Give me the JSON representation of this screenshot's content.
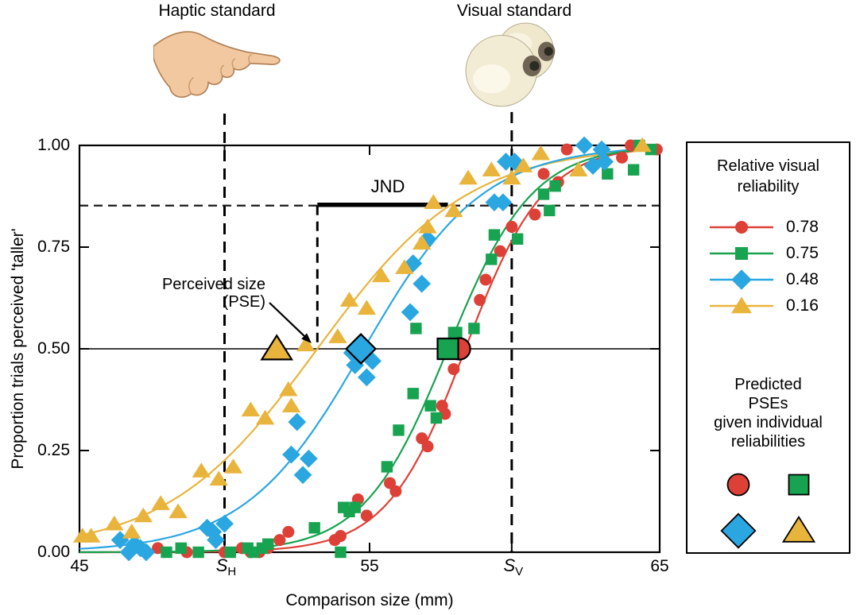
{
  "figure": {
    "haptic_label": "Haptic standard",
    "visual_label": "Visual standard",
    "annotations": {
      "jnd_label": "JND",
      "pse_label_line1": "Perceived size",
      "pse_label_line2": "(PSE)"
    },
    "x_axis": {
      "title": "Comparison size (mm)",
      "ticks": [
        "45",
        "55",
        "65"
      ],
      "tick_values": [
        45,
        55,
        65
      ],
      "standard_ticks": [
        {
          "main": "S",
          "sub": "H",
          "mm": 50.0
        },
        {
          "main": "S",
          "sub": "V",
          "mm": 59.9
        }
      ]
    },
    "y_axis": {
      "title": "Proportion trials perceived 'taller'",
      "ticks": [
        "1.00",
        "0.75",
        "0.50",
        "0.25",
        "0.00"
      ],
      "tick_values": [
        1,
        0.75,
        0.5,
        0.25,
        0
      ]
    }
  },
  "legend": {
    "title_line1": "Relative visual",
    "title_line2": "reliability",
    "predicted_title_lines": [
      "Predicted",
      "PSEs",
      "given individual",
      "reliabilities"
    ]
  },
  "chart_data": {
    "type": "scatter",
    "title": "",
    "xlabel": "Comparison size (mm)",
    "ylabel": "Proportion trials perceived 'taller'",
    "xlim": [
      45,
      65
    ],
    "ylim": [
      0,
      1
    ],
    "grid": false,
    "legend_position": "right",
    "haptic_standard_mm": 50.0,
    "visual_standard_mm": 59.9,
    "pse_line_y": 0.5,
    "jnd_criterion_y": 0.852,
    "jnd_interval_mm": [
      53.2,
      57.7
    ],
    "series": [
      {
        "name": "0.78",
        "marker": "circle",
        "color": "#dd4036",
        "curve": {
          "type": "logistic",
          "pse": 58.3,
          "slope": 1.35
        },
        "predicted_pse_mm": 58.1,
        "points": [
          [
            47.7,
            0.01
          ],
          [
            48.7,
            0.0
          ],
          [
            50.0,
            0.0
          ],
          [
            50.6,
            0.01
          ],
          [
            50.9,
            0.0
          ],
          [
            51.2,
            0.0
          ],
          [
            51.5,
            0.01
          ],
          [
            51.9,
            0.03
          ],
          [
            52.2,
            0.05
          ],
          [
            53.8,
            0.03
          ],
          [
            54.0,
            0.04
          ],
          [
            54.6,
            0.13
          ],
          [
            54.9,
            0.09
          ],
          [
            55.7,
            0.17
          ],
          [
            55.9,
            0.15
          ],
          [
            56.8,
            0.28
          ],
          [
            57.0,
            0.26
          ],
          [
            57.5,
            0.36
          ],
          [
            57.6,
            0.34
          ],
          [
            57.9,
            0.45
          ],
          [
            58.8,
            0.62
          ],
          [
            59.0,
            0.67
          ],
          [
            59.5,
            0.74
          ],
          [
            59.9,
            0.8
          ],
          [
            60.7,
            0.83
          ],
          [
            61.0,
            0.93
          ],
          [
            61.5,
            0.91
          ],
          [
            61.8,
            0.99
          ],
          [
            63.7,
            0.97
          ],
          [
            64.0,
            1.0
          ],
          [
            64.9,
            0.99
          ]
        ]
      },
      {
        "name": "0.75",
        "marker": "square",
        "color": "#17a34f",
        "curve": {
          "type": "logistic",
          "pse": 57.7,
          "slope": 1.45
        },
        "predicted_pse_mm": 57.7,
        "points": [
          [
            48.0,
            0.0
          ],
          [
            48.5,
            0.01
          ],
          [
            49.1,
            0.0
          ],
          [
            50.2,
            0.0
          ],
          [
            50.8,
            0.01
          ],
          [
            51.0,
            0.0
          ],
          [
            51.3,
            0.01
          ],
          [
            51.5,
            0.02
          ],
          [
            53.1,
            0.06
          ],
          [
            54.0,
            0.0
          ],
          [
            54.1,
            0.11
          ],
          [
            54.3,
            0.1
          ],
          [
            54.5,
            0.11
          ],
          [
            55.6,
            0.21
          ],
          [
            56.0,
            0.3
          ],
          [
            56.5,
            0.39
          ],
          [
            56.6,
            0.55
          ],
          [
            57.1,
            0.36
          ],
          [
            57.3,
            0.33
          ],
          [
            57.9,
            0.54
          ],
          [
            58.0,
            0.54
          ],
          [
            58.6,
            0.55
          ],
          [
            59.2,
            0.72
          ],
          [
            59.3,
            0.78
          ],
          [
            60.1,
            0.77
          ],
          [
            61.0,
            0.88
          ],
          [
            61.2,
            0.84
          ],
          [
            61.4,
            0.9
          ],
          [
            63.2,
            0.93
          ],
          [
            64.1,
            0.94
          ],
          [
            64.3,
            1.0
          ],
          [
            64.7,
            0.99
          ]
        ]
      },
      {
        "name": "0.48",
        "marker": "diamond",
        "color": "#2aa7e0",
        "curve": {
          "type": "logistic",
          "pse": 54.8,
          "slope": 2.05
        },
        "predicted_pse_mm": 54.7,
        "points": [
          [
            46.4,
            0.03
          ],
          [
            46.7,
            0.0
          ],
          [
            46.9,
            0.02
          ],
          [
            47.1,
            0.01
          ],
          [
            47.3,
            0.0
          ],
          [
            49.4,
            0.06
          ],
          [
            49.6,
            0.05
          ],
          [
            49.7,
            0.03
          ],
          [
            50.0,
            0.07
          ],
          [
            52.3,
            0.24
          ],
          [
            52.5,
            0.32
          ],
          [
            52.7,
            0.19
          ],
          [
            52.9,
            0.23
          ],
          [
            54.4,
            0.49
          ],
          [
            54.5,
            0.46
          ],
          [
            54.9,
            0.43
          ],
          [
            55.1,
            0.47
          ],
          [
            56.4,
            0.59
          ],
          [
            56.5,
            0.71
          ],
          [
            56.8,
            0.66
          ],
          [
            57.0,
            0.77
          ],
          [
            59.3,
            0.86
          ],
          [
            59.6,
            0.86
          ],
          [
            59.7,
            0.96
          ],
          [
            60.0,
            0.96
          ],
          [
            62.4,
            1.0
          ],
          [
            62.7,
            0.95
          ],
          [
            63.0,
            0.99
          ],
          [
            63.1,
            0.96
          ]
        ]
      },
      {
        "name": "0.16",
        "marker": "triangle",
        "color": "#e9b43c",
        "curve": {
          "type": "logistic",
          "pse": 53.2,
          "slope": 2.6
        },
        "predicted_pse_mm": 51.8,
        "points": [
          [
            45.1,
            0.04
          ],
          [
            45.4,
            0.04
          ],
          [
            46.2,
            0.07
          ],
          [
            46.8,
            0.05
          ],
          [
            47.2,
            0.09
          ],
          [
            47.8,
            0.12
          ],
          [
            48.4,
            0.1
          ],
          [
            49.2,
            0.2
          ],
          [
            49.8,
            0.18
          ],
          [
            50.3,
            0.21
          ],
          [
            50.9,
            0.35
          ],
          [
            51.4,
            0.33
          ],
          [
            52.2,
            0.4
          ],
          [
            52.3,
            0.36
          ],
          [
            52.8,
            0.51
          ],
          [
            53.9,
            0.53
          ],
          [
            54.3,
            0.62
          ],
          [
            54.9,
            0.6
          ],
          [
            55.4,
            0.68
          ],
          [
            56.2,
            0.7
          ],
          [
            56.8,
            0.76
          ],
          [
            57.0,
            0.8
          ],
          [
            57.2,
            0.86
          ],
          [
            57.9,
            0.84
          ],
          [
            58.4,
            0.92
          ],
          [
            59.2,
            0.94
          ],
          [
            59.9,
            0.92
          ],
          [
            60.3,
            0.95
          ],
          [
            60.9,
            0.98
          ],
          [
            62.2,
            0.94
          ],
          [
            64.4,
            1.0
          ]
        ]
      }
    ]
  }
}
